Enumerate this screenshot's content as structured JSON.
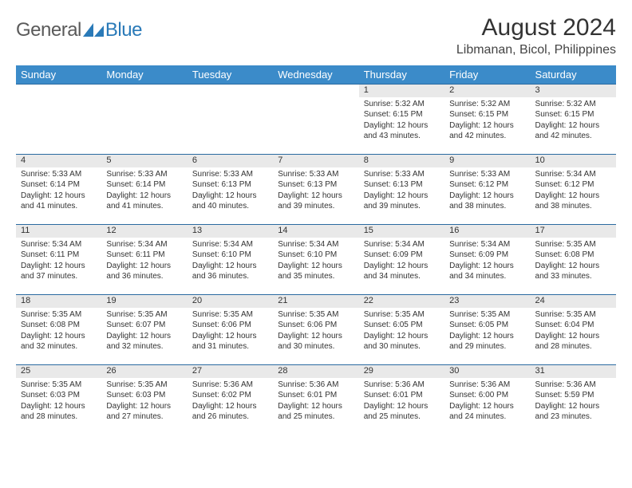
{
  "logo": {
    "text_general": "General",
    "text_blue": "Blue",
    "icon_color": "#2a7ab8"
  },
  "title": "August 2024",
  "location": "Libmanan, Bicol, Philippines",
  "header_bg": "#3b8bc9",
  "header_text_color": "#ffffff",
  "daynum_bg": "#e9e9e9",
  "border_color": "#2a6aa0",
  "weekdays": [
    "Sunday",
    "Monday",
    "Tuesday",
    "Wednesday",
    "Thursday",
    "Friday",
    "Saturday"
  ],
  "weeks": [
    [
      null,
      null,
      null,
      null,
      {
        "n": "1",
        "sr": "5:32 AM",
        "ss": "6:15 PM",
        "dl": "12 hours and 43 minutes."
      },
      {
        "n": "2",
        "sr": "5:32 AM",
        "ss": "6:15 PM",
        "dl": "12 hours and 42 minutes."
      },
      {
        "n": "3",
        "sr": "5:32 AM",
        "ss": "6:15 PM",
        "dl": "12 hours and 42 minutes."
      }
    ],
    [
      {
        "n": "4",
        "sr": "5:33 AM",
        "ss": "6:14 PM",
        "dl": "12 hours and 41 minutes."
      },
      {
        "n": "5",
        "sr": "5:33 AM",
        "ss": "6:14 PM",
        "dl": "12 hours and 41 minutes."
      },
      {
        "n": "6",
        "sr": "5:33 AM",
        "ss": "6:13 PM",
        "dl": "12 hours and 40 minutes."
      },
      {
        "n": "7",
        "sr": "5:33 AM",
        "ss": "6:13 PM",
        "dl": "12 hours and 39 minutes."
      },
      {
        "n": "8",
        "sr": "5:33 AM",
        "ss": "6:13 PM",
        "dl": "12 hours and 39 minutes."
      },
      {
        "n": "9",
        "sr": "5:33 AM",
        "ss": "6:12 PM",
        "dl": "12 hours and 38 minutes."
      },
      {
        "n": "10",
        "sr": "5:34 AM",
        "ss": "6:12 PM",
        "dl": "12 hours and 38 minutes."
      }
    ],
    [
      {
        "n": "11",
        "sr": "5:34 AM",
        "ss": "6:11 PM",
        "dl": "12 hours and 37 minutes."
      },
      {
        "n": "12",
        "sr": "5:34 AM",
        "ss": "6:11 PM",
        "dl": "12 hours and 36 minutes."
      },
      {
        "n": "13",
        "sr": "5:34 AM",
        "ss": "6:10 PM",
        "dl": "12 hours and 36 minutes."
      },
      {
        "n": "14",
        "sr": "5:34 AM",
        "ss": "6:10 PM",
        "dl": "12 hours and 35 minutes."
      },
      {
        "n": "15",
        "sr": "5:34 AM",
        "ss": "6:09 PM",
        "dl": "12 hours and 34 minutes."
      },
      {
        "n": "16",
        "sr": "5:34 AM",
        "ss": "6:09 PM",
        "dl": "12 hours and 34 minutes."
      },
      {
        "n": "17",
        "sr": "5:35 AM",
        "ss": "6:08 PM",
        "dl": "12 hours and 33 minutes."
      }
    ],
    [
      {
        "n": "18",
        "sr": "5:35 AM",
        "ss": "6:08 PM",
        "dl": "12 hours and 32 minutes."
      },
      {
        "n": "19",
        "sr": "5:35 AM",
        "ss": "6:07 PM",
        "dl": "12 hours and 32 minutes."
      },
      {
        "n": "20",
        "sr": "5:35 AM",
        "ss": "6:06 PM",
        "dl": "12 hours and 31 minutes."
      },
      {
        "n": "21",
        "sr": "5:35 AM",
        "ss": "6:06 PM",
        "dl": "12 hours and 30 minutes."
      },
      {
        "n": "22",
        "sr": "5:35 AM",
        "ss": "6:05 PM",
        "dl": "12 hours and 30 minutes."
      },
      {
        "n": "23",
        "sr": "5:35 AM",
        "ss": "6:05 PM",
        "dl": "12 hours and 29 minutes."
      },
      {
        "n": "24",
        "sr": "5:35 AM",
        "ss": "6:04 PM",
        "dl": "12 hours and 28 minutes."
      }
    ],
    [
      {
        "n": "25",
        "sr": "5:35 AM",
        "ss": "6:03 PM",
        "dl": "12 hours and 28 minutes."
      },
      {
        "n": "26",
        "sr": "5:35 AM",
        "ss": "6:03 PM",
        "dl": "12 hours and 27 minutes."
      },
      {
        "n": "27",
        "sr": "5:36 AM",
        "ss": "6:02 PM",
        "dl": "12 hours and 26 minutes."
      },
      {
        "n": "28",
        "sr": "5:36 AM",
        "ss": "6:01 PM",
        "dl": "12 hours and 25 minutes."
      },
      {
        "n": "29",
        "sr": "5:36 AM",
        "ss": "6:01 PM",
        "dl": "12 hours and 25 minutes."
      },
      {
        "n": "30",
        "sr": "5:36 AM",
        "ss": "6:00 PM",
        "dl": "12 hours and 24 minutes."
      },
      {
        "n": "31",
        "sr": "5:36 AM",
        "ss": "5:59 PM",
        "dl": "12 hours and 23 minutes."
      }
    ]
  ],
  "labels": {
    "sunrise": "Sunrise: ",
    "sunset": "Sunset: ",
    "daylight": "Daylight: "
  }
}
